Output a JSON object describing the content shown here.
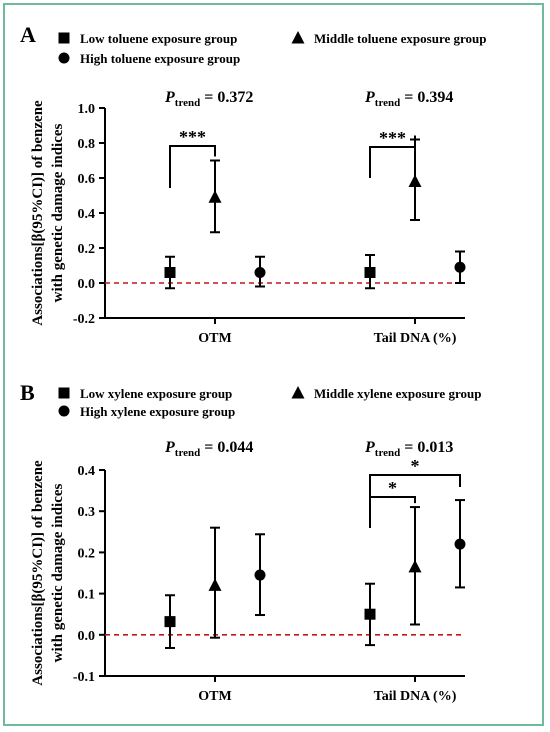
{
  "chart_data": [
    {
      "type": "scatter",
      "panel_label": "A",
      "ylabel_line1": "Associations[β(95%CI)] of benzene",
      "ylabel_line2": "with genetic damage indices",
      "categories": [
        "OTM",
        "Tail DNA (%)"
      ],
      "ylim": [
        -0.2,
        1.0
      ],
      "yticks": [
        "1.0",
        "0.8",
        "0.6",
        "0.4",
        "0.2",
        "0.0",
        "-0.2"
      ],
      "p_trend": [
        "= 0.372",
        "= 0.394"
      ],
      "p_label_main": "P",
      "p_label_sub": "trend",
      "series": [
        {
          "name": "Low toluene exposure group",
          "marker": "square",
          "values": [
            0.06,
            0.06
          ],
          "lower": [
            -0.03,
            -0.03
          ],
          "upper": [
            0.15,
            0.16
          ]
        },
        {
          "name": "Middle toluene exposure group",
          "marker": "triangle",
          "values": [
            0.49,
            0.58
          ],
          "lower": [
            0.29,
            0.36
          ],
          "upper": [
            0.7,
            0.82
          ]
        },
        {
          "name": "High toluene exposure group",
          "marker": "circle",
          "values": [
            0.06,
            0.09
          ],
          "lower": [
            -0.02,
            0.0
          ],
          "upper": [
            0.15,
            0.18
          ]
        }
      ],
      "significance": [
        {
          "category": 0,
          "from": 0,
          "to": 1,
          "label": "***"
        },
        {
          "category": 1,
          "from": 0,
          "to": 1,
          "label": "***"
        }
      ],
      "reference_line": 0.0
    },
    {
      "type": "scatter",
      "panel_label": "B",
      "ylabel_line1": "Associations[β(95%CI)] of benzene",
      "ylabel_line2": "with genetic damage indices",
      "categories": [
        "OTM",
        "Tail DNA (%)"
      ],
      "ylim": [
        -0.1,
        0.4
      ],
      "yticks": [
        "0.4",
        "0.3",
        "0.2",
        "0.1",
        "0.0",
        "-0.1"
      ],
      "p_trend": [
        "= 0.044",
        "= 0.013"
      ],
      "p_label_main": "P",
      "p_label_sub": "trend",
      "series": [
        {
          "name": "Low xylene exposure group",
          "marker": "square",
          "values": [
            0.032,
            0.05
          ],
          "lower": [
            -0.032,
            -0.025
          ],
          "upper": [
            0.096,
            0.124
          ]
        },
        {
          "name": "Middle xylene exposure group",
          "marker": "triangle",
          "values": [
            0.12,
            0.165
          ],
          "lower": [
            -0.007,
            0.025
          ],
          "upper": [
            0.26,
            0.31
          ]
        },
        {
          "name": "High xylene exposure group",
          "marker": "circle",
          "values": [
            0.145,
            0.22
          ],
          "lower": [
            0.048,
            0.115
          ],
          "upper": [
            0.244,
            0.327
          ]
        }
      ],
      "significance": [
        {
          "category": 1,
          "from": 0,
          "to": 1,
          "label": "*"
        },
        {
          "category": 1,
          "from": 0,
          "to": 2,
          "label": "*"
        }
      ],
      "reference_line": 0.0
    }
  ],
  "colors": {
    "frame": "#6dbb9a",
    "reference_line": "#c0171c",
    "ink": "#000000"
  }
}
